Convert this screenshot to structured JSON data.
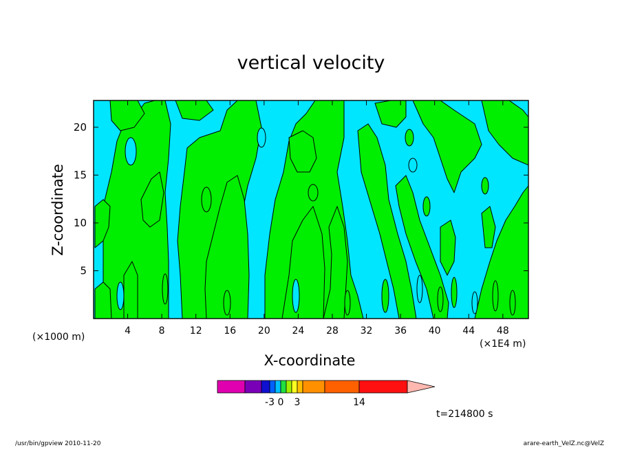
{
  "chart_data": {
    "type": "contour",
    "title": "vertical velocity",
    "xlabel": "X-coordinate",
    "ylabel": "Z-coordinate",
    "x_unit_label": "(×1000 m)",
    "x_scale_label": "(×1E4 m)",
    "xlim": [
      0,
      51
    ],
    "ylim": [
      0,
      22.8
    ],
    "x_ticks": [
      4,
      8,
      12,
      16,
      20,
      24,
      28,
      32,
      36,
      40,
      44,
      48
    ],
    "y_ticks": [
      5,
      10,
      15,
      20
    ],
    "fill_colors": {
      "positive": "#00ee00",
      "negative": "#00e6ff",
      "line": "#000000"
    },
    "colorbar": {
      "colors": [
        "#e000b0",
        "#7a00b8",
        "#1010d0",
        "#0060ff",
        "#00c0ff",
        "#20e040",
        "#a0f000",
        "#ffff20",
        "#ffc000",
        "#ff9000",
        "#ff6000",
        "#ff1010",
        "#ff8070",
        "#ffb8b0"
      ],
      "tick_labels": [
        "-3",
        "0",
        "3",
        "14"
      ]
    },
    "time_label": "t=214800 s"
  },
  "footer": {
    "left": "/usr/bin/gpview   2010-11-20",
    "right": "arare-earth_VelZ.nc@VelZ"
  }
}
